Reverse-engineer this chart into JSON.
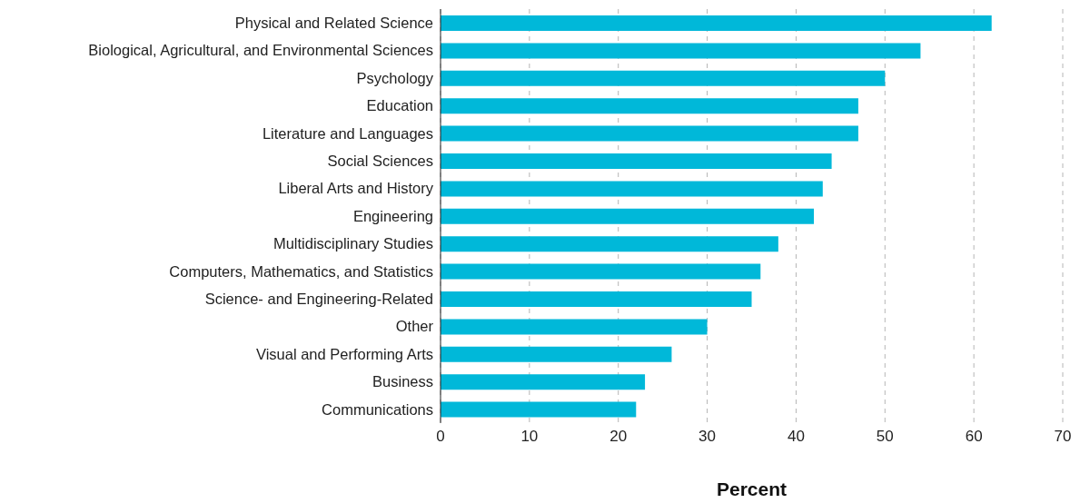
{
  "chart_data": {
    "type": "bar",
    "orientation": "horizontal",
    "xlabel": "Percent",
    "categories": [
      "Physical and Related Science",
      "Biological, Agricultural, and Environmental Sciences",
      "Psychology",
      "Education",
      "Literature and Languages",
      "Social Sciences",
      "Liberal Arts and History",
      "Engineering",
      "Multidisciplinary Studies",
      "Computers, Mathematics, and Statistics",
      "Science- and Engineering-Related",
      "Other",
      "Visual and Performing Arts",
      "Business",
      "Communications"
    ],
    "values": [
      62,
      54,
      50,
      47,
      47,
      44,
      43,
      42,
      38,
      36,
      35,
      30,
      26,
      23,
      22
    ],
    "color": "#00b8d9",
    "xlim": [
      0,
      70
    ],
    "xticks": [
      0,
      10,
      20,
      30,
      40,
      50,
      60,
      70
    ],
    "grid": "x",
    "legend": false
  }
}
